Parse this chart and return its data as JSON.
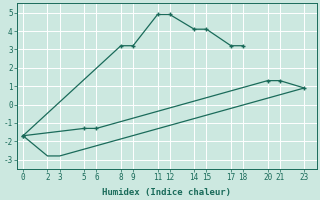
{
  "xlabel": "Humidex (Indice chaleur)",
  "bg_color": "#cce8e0",
  "grid_color": "#ffffff",
  "line_color": "#1a6b5a",
  "xticks": [
    0,
    2,
    3,
    5,
    6,
    8,
    9,
    11,
    12,
    14,
    15,
    17,
    18,
    20,
    21,
    23
  ],
  "yticks": [
    -3,
    -2,
    -1,
    0,
    1,
    2,
    3,
    4,
    5
  ],
  "xlim": [
    -0.5,
    24.0
  ],
  "ylim": [
    -3.5,
    5.5
  ],
  "line1_x": [
    0,
    8,
    9,
    11,
    12,
    14,
    15,
    17,
    18
  ],
  "line1_y": [
    -1.7,
    3.2,
    3.2,
    4.9,
    4.9,
    4.1,
    4.1,
    3.2,
    3.2
  ],
  "line2_x": [
    0,
    5,
    6,
    20,
    21,
    23
  ],
  "line2_y": [
    -1.7,
    -1.3,
    -1.3,
    1.3,
    1.3,
    0.9
  ],
  "line3_x": [
    0,
    2,
    3,
    23
  ],
  "line3_y": [
    -1.7,
    -2.8,
    -2.8,
    0.9
  ]
}
